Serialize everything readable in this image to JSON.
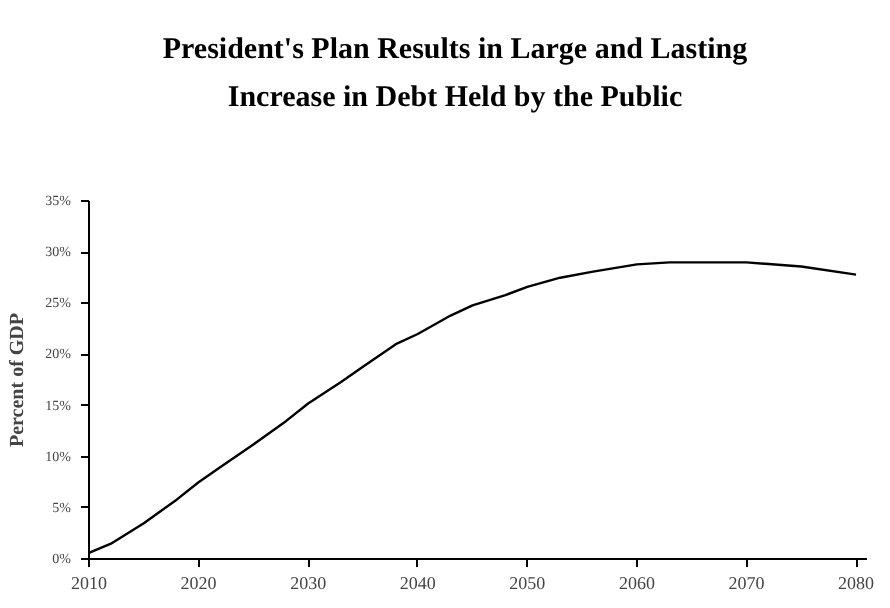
{
  "chart_data": {
    "type": "line",
    "title": "President's Plan Results in Large and Lasting\nIncrease in Debt Held by the Public",
    "ylabel": "Percent of GDP",
    "x": [
      2010,
      2012,
      2015,
      2018,
      2020,
      2022,
      2025,
      2028,
      2030,
      2033,
      2035,
      2038,
      2040,
      2043,
      2045,
      2048,
      2050,
      2053,
      2056,
      2060,
      2063,
      2067,
      2070,
      2075,
      2080
    ],
    "series": [
      {
        "color": "#000000",
        "values": [
          0.6,
          1.5,
          3.5,
          5.8,
          7.5,
          9.0,
          11.2,
          13.5,
          15.2,
          17.3,
          18.8,
          21.0,
          22.0,
          23.8,
          24.8,
          25.8,
          26.6,
          27.5,
          28.1,
          28.8,
          29.0,
          29.0,
          29.0,
          28.6,
          27.8
        ]
      }
    ],
    "xlim": [
      2010,
      2081
    ],
    "xticks": [
      2010,
      2020,
      2030,
      2040,
      2050,
      2060,
      2070,
      2080
    ],
    "ylim": [
      0,
      35
    ],
    "yticks": [
      {
        "value": 0,
        "label": "0%"
      },
      {
        "value": 5,
        "label": "5%"
      },
      {
        "value": 10,
        "label": "10%"
      },
      {
        "value": 15,
        "label": "15%"
      },
      {
        "value": 20,
        "label": "20%"
      },
      {
        "value": 25,
        "label": "25%"
      },
      {
        "value": 30,
        "label": "30%"
      },
      {
        "value": 35,
        "label": "35%"
      }
    ],
    "line_style": "solid"
  }
}
